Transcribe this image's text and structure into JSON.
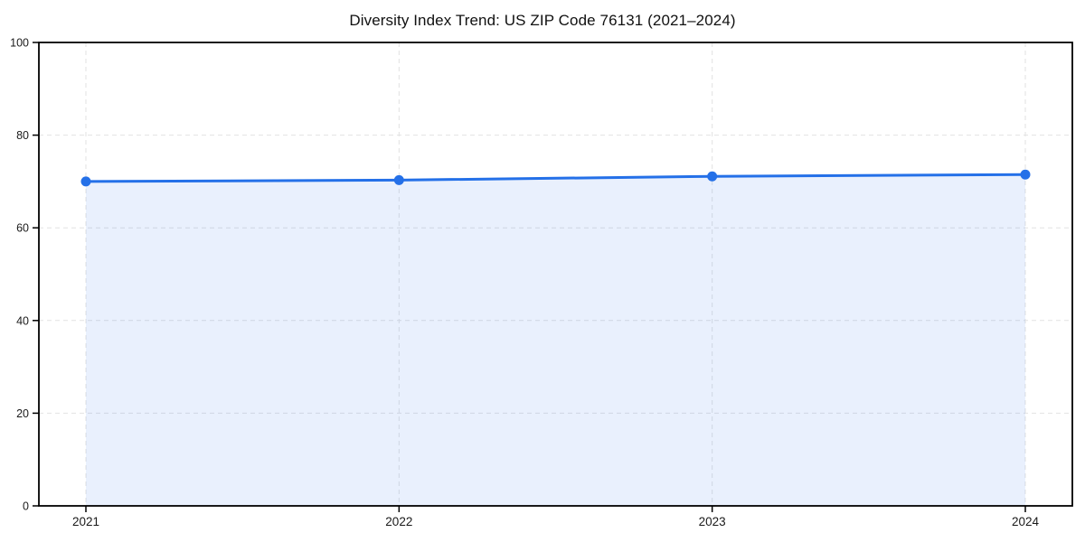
{
  "colors": {
    "line": "#2470e8",
    "marker": "#2470e8",
    "fill": "rgba(36,112,232,0.10)",
    "grid": "#e2e2e2",
    "axis": "#000000",
    "tick_text": "#1a1a1a",
    "background": "#ffffff"
  },
  "chart_data": {
    "type": "area",
    "title": "Diversity Index Trend: US ZIP Code 76131 (2021–2024)",
    "categories": [
      "2021",
      "2022",
      "2023",
      "2024"
    ],
    "series": [
      {
        "name": "Diversity Index",
        "values": [
          70.0,
          70.3,
          71.1,
          71.5
        ]
      }
    ],
    "xlabel": "",
    "ylabel": "",
    "ylim": [
      0,
      100
    ],
    "yticks": [
      0,
      20,
      40,
      60,
      80,
      100
    ],
    "grid": true,
    "grid_style": "dashed",
    "legend": "none",
    "marker_shape": "circle"
  }
}
